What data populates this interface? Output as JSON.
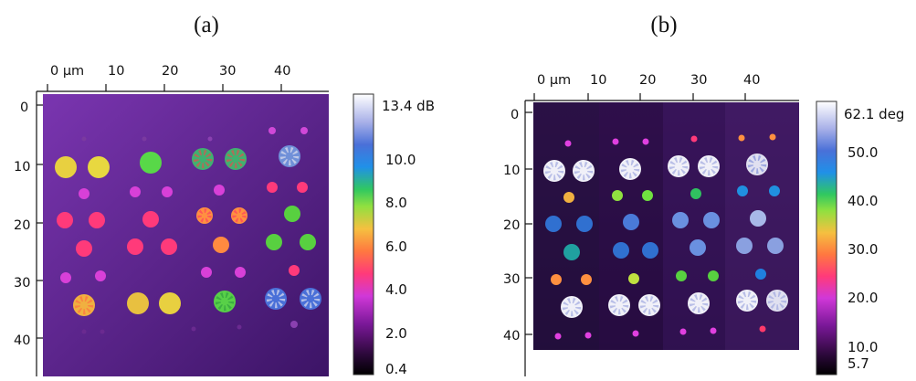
{
  "panels": [
    {
      "label": "(a)",
      "x_ticks": [
        "0 µm",
        "10",
        "20",
        "30",
        "40"
      ],
      "y_ticks": [
        "0",
        "10",
        "20",
        "30",
        "40"
      ],
      "colorbar": {
        "unit": "dB",
        "tick_labels": [
          "13.4 dB",
          "10.0",
          "8.0",
          "6.0",
          "4.0",
          "2.0",
          "0.4"
        ],
        "tick_values": [
          13.4,
          10.0,
          8.0,
          6.0,
          4.0,
          2.0,
          0.4
        ],
        "min": 0.4,
        "max": 13.4
      },
      "colors": {
        "background_top": "#6b2fa0",
        "background_bottom": "#4a1b78"
      }
    },
    {
      "label": "(b)",
      "x_ticks": [
        "0 µm",
        "10",
        "20",
        "30",
        "40"
      ],
      "y_ticks": [
        "0",
        "10",
        "20",
        "30",
        "40"
      ],
      "colorbar": {
        "unit": "deg",
        "tick_labels": [
          "62.1 deg",
          "50.0",
          "40.0",
          "30.0",
          "20.0",
          "10.0",
          "5.7"
        ],
        "tick_values": [
          62.1,
          50.0,
          40.0,
          30.0,
          20.0,
          10.0,
          5.7
        ],
        "min": 5.7,
        "max": 62.1
      },
      "colors": {
        "background_top": "#2e0f45",
        "background_bottom": "#1f0a35"
      }
    }
  ],
  "colormap": [
    "#000000",
    "#3a0a4a",
    "#8a1aa8",
    "#e040e0",
    "#ff3a6a",
    "#ff8a3a",
    "#f0d040",
    "#70e040",
    "#30c060",
    "#2090e0",
    "#3060d0",
    "#8090e0",
    "#e8e8f0",
    "#ffffff"
  ]
}
